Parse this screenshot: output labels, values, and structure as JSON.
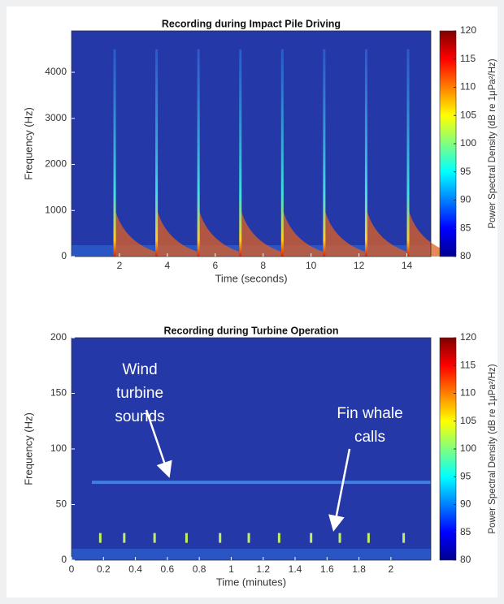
{
  "chart_data": [
    {
      "type": "spectrogram",
      "title": "Recording during Impact Pile Driving",
      "xlabel": "Time (seconds)",
      "ylabel": "Frequency (Hz)",
      "xlim": [
        0,
        15
      ],
      "xticks": [
        2,
        4,
        6,
        8,
        10,
        12,
        14
      ],
      "ylim": [
        0,
        4900
      ],
      "yticks": [
        0,
        1000,
        2000,
        3000,
        4000
      ],
      "colorbar_label": "Power Spectral Density (dB re 1μPa²/Hz)",
      "clim": [
        80,
        120
      ],
      "cticks": [
        80,
        85,
        90,
        95,
        100,
        105,
        110,
        115,
        120
      ],
      "events": [
        1.8,
        3.55,
        5.3,
        7.05,
        8.8,
        10.55,
        12.3,
        14.05
      ],
      "event_top": 4500
    },
    {
      "type": "spectrogram",
      "title": "Recording during Turbine Operation",
      "xlabel": "Time (minutes)",
      "ylabel": "Frequency (Hz)",
      "xlim": [
        0,
        2.25
      ],
      "xticks": [
        0,
        0.2,
        0.4,
        0.6,
        0.8,
        1,
        1.2,
        1.4,
        1.6,
        1.8,
        2
      ],
      "ylim": [
        0,
        200
      ],
      "yticks": [
        0,
        50,
        100,
        150,
        200
      ],
      "colorbar_label": "Power Spectral Density (dB re 1μPa²/Hz)",
      "clim": [
        80,
        120
      ],
      "cticks": [
        80,
        85,
        90,
        95,
        100,
        105,
        110,
        115,
        120
      ],
      "band": 70,
      "calls": [
        0.18,
        0.33,
        0.52,
        0.72,
        0.93,
        1.11,
        1.3,
        1.5,
        1.68,
        1.86,
        2.08
      ],
      "call_freq": 20,
      "annotations": [
        {
          "lines": [
            "Wind",
            "turbine",
            "sounds"
          ]
        },
        {
          "lines": [
            "Fin whale",
            "calls"
          ]
        }
      ]
    }
  ]
}
